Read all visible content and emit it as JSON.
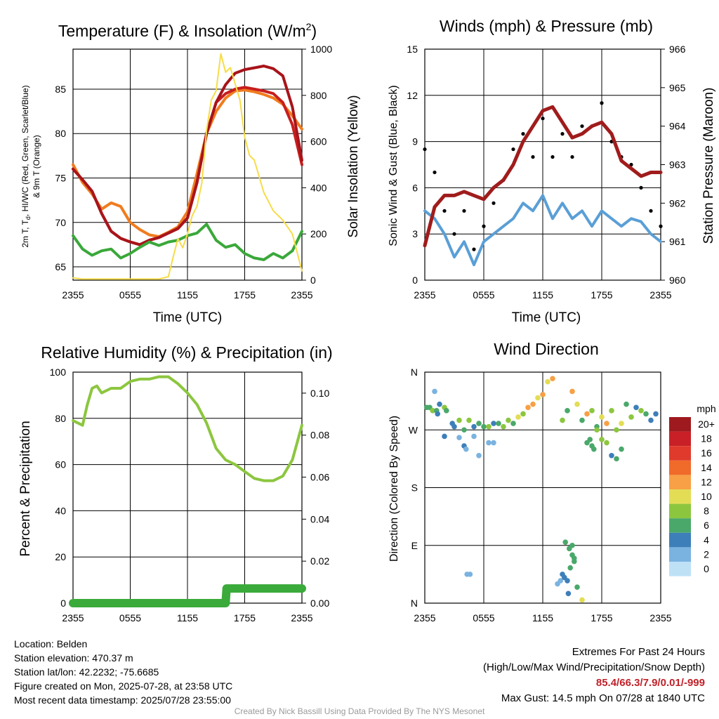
{
  "colors": {
    "red": "#c81e1e",
    "scarlet": "#a8141a",
    "orange": "#f07c1e",
    "green": "#3aa83a",
    "yellow": "#f7dc48",
    "blue": "#5a9fd6",
    "black": "#000000",
    "maroon": "#a01c1c",
    "rh": "#8cc63f",
    "precip": "#3aaa3a"
  },
  "chart_data": [
    {
      "id": "temperature",
      "type": "line",
      "title": "Temperature (F) & Insolation (W/m",
      "title_sup": "2",
      "title_end": ")",
      "xlabel": "Time (UTC)",
      "ylabel_line1": "2m T, T",
      "ylabel_sub": "d",
      "ylabel_line1_end": ", HI/WC (Red, Green, Scarlet/Blue)",
      "ylabel_line2": "& 9m T (Orange)",
      "y2label": "Solar Insolation (Yellow)",
      "x_ticks": [
        "2355",
        "0555",
        "1155",
        "1755",
        "2355"
      ],
      "y_ticks": [
        "65",
        "70",
        "75",
        "80",
        "85"
      ],
      "y2_ticks": [
        "0",
        "200",
        "400",
        "600",
        "800",
        "1000"
      ],
      "xlim": [
        0,
        24
      ],
      "ylim": [
        63.5,
        89.5
      ],
      "y2lim": [
        0,
        1000
      ],
      "series": [
        {
          "color": "orange",
          "x": [
            0,
            1,
            2,
            3,
            4,
            5,
            6,
            7,
            8,
            9,
            10,
            11,
            12,
            13,
            14,
            15,
            16,
            17,
            18,
            19,
            20,
            21,
            22,
            23,
            24
          ],
          "y": [
            76.5,
            74.5,
            73.2,
            71.5,
            72.2,
            71.8,
            70.0,
            69.2,
            68.6,
            68.4,
            68.9,
            69.5,
            71.2,
            75.5,
            80.0,
            82.5,
            84.0,
            84.8,
            84.9,
            84.7,
            84.4,
            84.0,
            83.3,
            82.0,
            80.5
          ]
        },
        {
          "color": "red",
          "x": [
            0,
            1,
            2,
            3,
            4,
            5,
            6,
            7,
            8,
            9,
            10,
            11,
            12,
            13,
            14,
            15,
            16,
            17,
            18,
            19,
            20,
            21,
            22,
            23,
            24
          ],
          "y": [
            76.0,
            74.8,
            73.5,
            71.0,
            69.0,
            68.2,
            67.8,
            67.5,
            68.0,
            68.3,
            68.8,
            69.3,
            70.5,
            74.5,
            80.0,
            83.5,
            84.5,
            85.0,
            85.2,
            85.0,
            84.8,
            84.5,
            83.5,
            81.0,
            76.5
          ]
        },
        {
          "color": "scarlet",
          "x": [
            0,
            1,
            2,
            3,
            4,
            5,
            6,
            7,
            8,
            9,
            10,
            11,
            12,
            13,
            14,
            15,
            16,
            17,
            18,
            19,
            20,
            21,
            22,
            23,
            24
          ],
          "y": [
            76.0,
            74.8,
            73.5,
            71.0,
            69.0,
            68.2,
            67.8,
            67.5,
            68.0,
            68.3,
            68.8,
            69.3,
            70.5,
            74.5,
            80.0,
            83.5,
            85.5,
            86.8,
            87.2,
            87.4,
            87.6,
            87.3,
            86.5,
            83.0,
            77.0
          ]
        },
        {
          "color": "green",
          "x": [
            0,
            1,
            2,
            3,
            4,
            5,
            6,
            7,
            8,
            9,
            10,
            11,
            12,
            13,
            14,
            15,
            16,
            17,
            18,
            19,
            20,
            21,
            22,
            23,
            24
          ],
          "y": [
            68.5,
            67.0,
            66.3,
            66.8,
            67.0,
            66.0,
            66.5,
            67.2,
            67.8,
            67.4,
            67.8,
            68.0,
            68.5,
            68.8,
            69.8,
            68.0,
            67.2,
            67.5,
            66.5,
            66.0,
            65.8,
            66.5,
            66.0,
            66.8,
            69.0
          ]
        },
        {
          "color": "yellow",
          "axis": "y2",
          "x": [
            0,
            1,
            2,
            3,
            4,
            5,
            6,
            7,
            8,
            9,
            10,
            10.5,
            11,
            11.5,
            12,
            12.5,
            13,
            13.5,
            14,
            14.5,
            15,
            15.5,
            16,
            16.5,
            17,
            17.5,
            18,
            18.5,
            19,
            19.5,
            20,
            21,
            22,
            23,
            24
          ],
          "y": [
            10,
            5,
            5,
            5,
            5,
            5,
            5,
            5,
            5,
            5,
            15,
            100,
            180,
            140,
            200,
            280,
            320,
            420,
            650,
            780,
            820,
            980,
            900,
            920,
            850,
            780,
            620,
            540,
            520,
            450,
            380,
            300,
            260,
            200,
            40
          ]
        }
      ]
    },
    {
      "id": "winds",
      "type": "line",
      "title": "Winds (mph) & Pressure (mb)",
      "xlabel": "Time (UTC)",
      "ylabel": "Sonic Wind & Gust (Blue, Black)",
      "y2label": "Station Pressure (Maroon)",
      "x_ticks": [
        "2355",
        "0555",
        "1155",
        "1755",
        "2355"
      ],
      "y_ticks": [
        "0",
        "3",
        "6",
        "9",
        "12",
        "15"
      ],
      "y2_ticks": [
        "960",
        "961",
        "962",
        "963",
        "964",
        "965",
        "966"
      ],
      "xlim": [
        0,
        24
      ],
      "ylim": [
        0,
        15
      ],
      "y2lim": [
        960,
        966
      ],
      "series": [
        {
          "name": "wind",
          "color": "blue",
          "x": [
            0,
            1,
            2,
            3,
            4,
            5,
            6,
            7,
            8,
            9,
            10,
            11,
            12,
            13,
            14,
            15,
            16,
            17,
            18,
            19,
            20,
            21,
            22,
            23,
            24
          ],
          "y": [
            4.5,
            4.0,
            3.0,
            1.5,
            2.5,
            1.0,
            2.5,
            3.0,
            3.5,
            4.0,
            5.0,
            4.5,
            5.5,
            4.0,
            5.0,
            4.0,
            4.5,
            3.5,
            4.5,
            4.0,
            3.5,
            4.0,
            3.8,
            3.0,
            2.5
          ]
        },
        {
          "name": "gust",
          "color": "black",
          "x": [
            0,
            1,
            2,
            3,
            4,
            5,
            6,
            7,
            8,
            9,
            10,
            11,
            12,
            13,
            14,
            15,
            16,
            17,
            18,
            19,
            20,
            21,
            22,
            23,
            24
          ],
          "y": [
            8.5,
            7.0,
            4.5,
            3.0,
            4.5,
            2.0,
            3.5,
            5.0,
            6.5,
            8.5,
            9.5,
            8.0,
            10.5,
            8.0,
            9.5,
            8.0,
            10.0,
            10.0,
            11.5,
            9.0,
            8.0,
            7.5,
            6.0,
            4.5,
            3.5
          ]
        },
        {
          "name": "pressure",
          "color": "maroon",
          "axis": "y2",
          "x": [
            0,
            1,
            2,
            3,
            4,
            5,
            6,
            7,
            8,
            9,
            10,
            11,
            12,
            13,
            14,
            15,
            16,
            17,
            18,
            19,
            20,
            21,
            22,
            23,
            24
          ],
          "y": [
            960.9,
            961.9,
            962.2,
            962.2,
            962.3,
            962.2,
            962.1,
            962.4,
            962.6,
            963.0,
            963.6,
            964.0,
            964.4,
            964.5,
            964.1,
            963.7,
            963.8,
            964.0,
            964.1,
            963.8,
            963.1,
            962.9,
            962.7,
            962.8,
            962.8
          ]
        }
      ]
    },
    {
      "id": "humidity",
      "type": "line",
      "title": "Relative Humidity (%) & Precipitation (in)",
      "ylabel": "Percent & Precipitation",
      "x_ticks": [
        "2355",
        "0555",
        "1155",
        "1755",
        "2355"
      ],
      "y_ticks": [
        "0",
        "20",
        "40",
        "60",
        "80",
        "100"
      ],
      "y2_ticks": [
        "0.00",
        "0.02",
        "0.04",
        "0.06",
        "0.08",
        "0.10"
      ],
      "xlim": [
        0,
        24
      ],
      "ylim": [
        0,
        100
      ],
      "y2lim": [
        0,
        0.11
      ],
      "series": [
        {
          "name": "rh",
          "color": "rh",
          "x": [
            0,
            1,
            1.5,
            2,
            2.5,
            3,
            4,
            5,
            6,
            7,
            8,
            9,
            10,
            11,
            12,
            13,
            14,
            15,
            16,
            17,
            18,
            19,
            20,
            21,
            22,
            23,
            24
          ],
          "y": [
            79,
            77,
            86,
            93,
            94,
            91,
            93,
            93,
            96,
            97,
            97,
            98,
            98,
            95,
            91,
            86,
            78,
            67,
            62,
            60,
            57,
            54,
            53,
            53,
            55,
            62,
            77
          ]
        },
        {
          "name": "precip",
          "color": "precip",
          "axis": "y2",
          "x": [
            0,
            16,
            16.1,
            24
          ],
          "y": [
            0,
            0,
            0.007,
            0.007
          ]
        }
      ]
    },
    {
      "id": "direction",
      "type": "scatter",
      "title": "Wind Direction",
      "ylabel": "Direction (Colored By Speed)",
      "x_ticks": [
        "2355",
        "0555",
        "1155",
        "1755",
        "2355"
      ],
      "y_ticks": [
        "N",
        "E",
        "S",
        "W",
        "N"
      ],
      "xlim": [
        0,
        24
      ],
      "ylim": [
        0,
        360
      ],
      "legend_title": "mph",
      "legend_labels": [
        "20+",
        "18",
        "16",
        "14",
        "12",
        "10",
        "8",
        "6",
        "4",
        "2",
        "0"
      ],
      "legend_colors": [
        "#9e1a1e",
        "#c82026",
        "#e03a2c",
        "#f06a2a",
        "#f7a045",
        "#e3dd55",
        "#8cc63f",
        "#4aa86a",
        "#3d7fb8",
        "#7ab3e0",
        "#bfe1f6"
      ],
      "series": [
        {
          "x": [
            0.2,
            0.5,
            0.8,
            1.2,
            1.5,
            2.0,
            2.2,
            2.8,
            3.0,
            3.5,
            4.0,
            4.5,
            5.0,
            5.5,
            6.0,
            6.5,
            7.0,
            7.5,
            8.0,
            8.5,
            9.0,
            9.5,
            10.0,
            10.5,
            11.0,
            11.5,
            12.0,
            12.5,
            13.0,
            14.0,
            14.5,
            15.0,
            15.5,
            16.0,
            16.5,
            17.0,
            17.5,
            18.0,
            18.5,
            19.0,
            19.5,
            20.0,
            20.5,
            21.0,
            21.5,
            22.0,
            22.5,
            23.0,
            23.5
          ],
          "y": [
            305,
            305,
            300,
            300,
            310,
            305,
            300,
            280,
            275,
            285,
            270,
            285,
            275,
            280,
            275,
            275,
            280,
            280,
            275,
            285,
            280,
            290,
            295,
            305,
            310,
            320,
            325,
            345,
            350,
            285,
            300,
            330,
            310,
            285,
            295,
            300,
            275,
            290,
            280,
            300,
            270,
            280,
            310,
            290,
            305,
            300,
            295,
            285,
            295
          ],
          "c": [
            3,
            3,
            4,
            3,
            2,
            4,
            3,
            2,
            2,
            4,
            3,
            4,
            2,
            3,
            3,
            4,
            2,
            3,
            4,
            4,
            3,
            5,
            4,
            6,
            6,
            5,
            6,
            5,
            6,
            4,
            3,
            6,
            5,
            3,
            6,
            4,
            3,
            5,
            6,
            4,
            4,
            5,
            3,
            4,
            2,
            4,
            3,
            2,
            2
          ]
        },
        {
          "x": [
            1.0,
            1.3,
            2.0,
            3.5,
            4.0,
            4.2,
            5.5,
            14.3,
            14.7,
            15.0,
            15.2,
            13.5,
            13.8,
            14.0,
            14.2,
            14.5,
            14.6,
            14.8,
            15.0,
            15.2,
            15.5,
            16.0,
            16.5,
            16.8,
            17.0,
            17.2,
            17.5,
            18.0,
            18.5,
            19.0,
            19.5,
            20.0,
            5.0,
            6.5,
            7.0,
            4.3,
            4.6
          ],
          "y": [
            330,
            295,
            260,
            258,
            245,
            240,
            230,
            95,
            85,
            90,
            70,
            30,
            35,
            45,
            40,
            35,
            15,
            55,
            75,
            65,
            25,
            5,
            250,
            255,
            245,
            240,
            270,
            255,
            250,
            230,
            225,
            240,
            260,
            250,
            250,
            45,
            45
          ],
          "c": [
            1,
            2,
            2,
            1,
            2,
            1,
            1,
            3,
            3,
            3,
            3,
            1,
            1,
            2,
            2,
            2,
            2,
            3,
            3,
            3,
            3,
            5,
            3,
            3,
            3,
            3,
            4,
            4,
            4,
            2,
            3,
            3,
            1,
            1,
            1,
            1,
            1
          ]
        }
      ]
    }
  ],
  "footer": {
    "location": "Location: Belden",
    "elevation": "Station elevation: 470.37 m",
    "latlon": "Station lat/lon: 42.2232; -75.6685",
    "created": "Figure created on Mon, 2025-07-28, at 23:58 UTC",
    "recent": "Most recent data timestamp: 2025/07/28 23:55:00",
    "extremes_title": "Extremes For Past 24 Hours",
    "extremes_sub": "(High/Low/Max Wind/Precipitation/Snow Depth)",
    "extremes_values": "85.4/66.3/7.9/0.01/-999",
    "max_gust": "Max Gust: 14.5 mph On 07/28 at 1840 UTC",
    "credit": "Created By Nick Bassill Using Data Provided By The NYS Mesonet"
  }
}
